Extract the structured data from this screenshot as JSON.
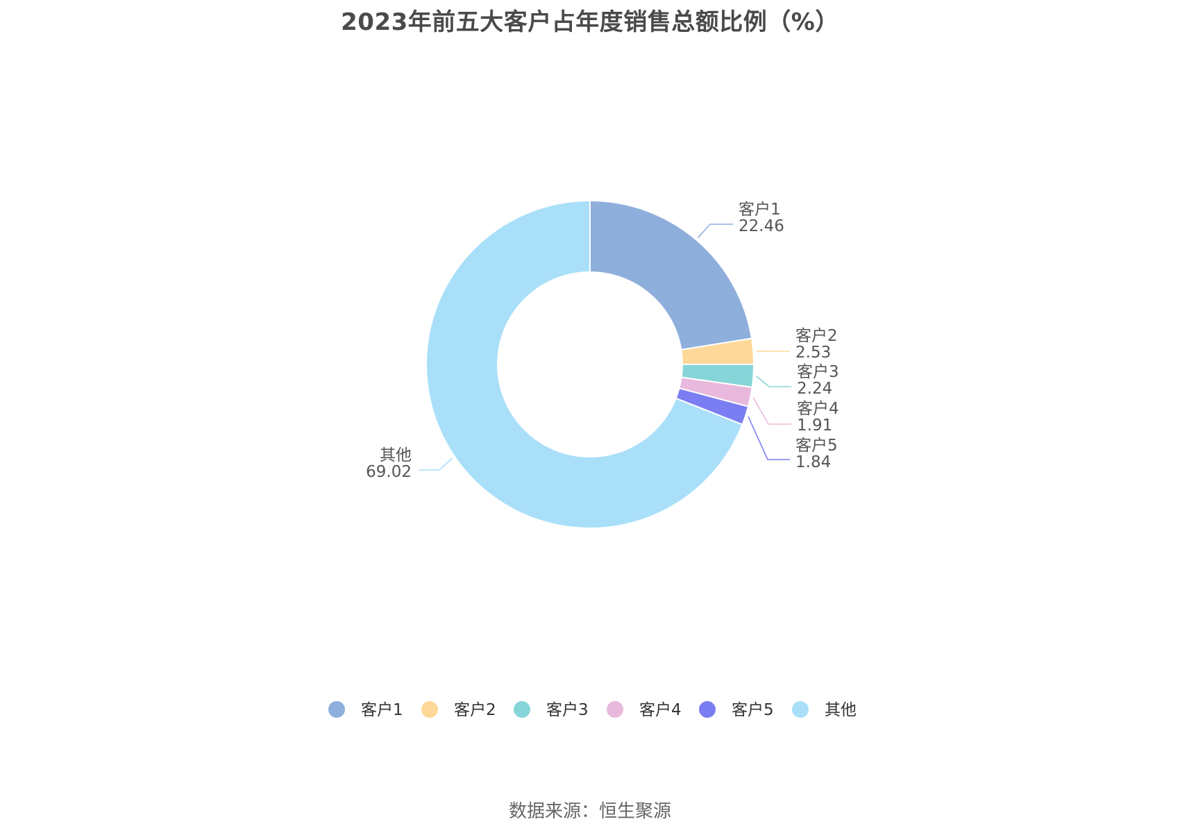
{
  "chart_data": {
    "type": "pie",
    "variant": "donut",
    "title": "2023年前五大客户占年度销售总额比例（%）",
    "slices": [
      {
        "label": "客户1",
        "value": 22.46,
        "value_text": "22.46",
        "color": "#8eaedb"
      },
      {
        "label": "客户2",
        "value": 2.53,
        "value_text": "2.53",
        "color": "#fdd898"
      },
      {
        "label": "客户3",
        "value": 2.24,
        "value_text": "2.24",
        "color": "#86d5d8"
      },
      {
        "label": "客户4",
        "value": 1.91,
        "value_text": "1.91",
        "color": "#e8b9dc"
      },
      {
        "label": "客户5",
        "value": 1.84,
        "value_text": "1.84",
        "color": "#7b7ef2"
      },
      {
        "label": "其他",
        "value": 69.02,
        "value_text": "69.02",
        "color": "#a9dff9"
      }
    ],
    "legend_position": "bottom"
  },
  "source": "数据来源：恒生聚源"
}
